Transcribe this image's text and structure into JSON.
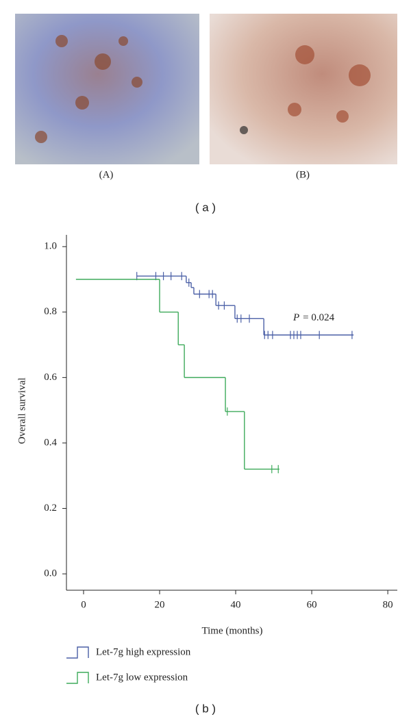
{
  "figure": {
    "panel_a": {
      "labels": [
        "(A)",
        "(B)"
      ],
      "caption": "( a )"
    },
    "caption": "( b )"
  },
  "chart_data": {
    "type": "step",
    "y_label": "Overall survival",
    "x_label": "Time (months)",
    "annotation": {
      "symbol": "P",
      "text": "= 0.024"
    },
    "xlim": [
      -4.5,
      82.5
    ],
    "ylim": [
      -0.05,
      1.036
    ],
    "xticks": [
      0,
      20,
      40,
      60,
      80
    ],
    "yticks": [
      {
        "value": 0,
        "label": "0.0"
      },
      {
        "value": 0.2,
        "label": "0.2"
      },
      {
        "value": 0.4,
        "label": "0.4"
      },
      {
        "value": 0.6,
        "label": "0.6"
      },
      {
        "value": 0.8,
        "label": "0.8"
      },
      {
        "value": 1,
        "label": "1.0"
      }
    ],
    "series": [
      {
        "name": "Let-7g high expression",
        "color": "#4a5fa6",
        "x": [
          14,
          27,
          28.3,
          29,
          34.8,
          39.8,
          47.4,
          71
        ],
        "values": [
          0.91,
          0.89,
          0.875,
          0.855,
          0.82,
          0.78,
          0.73,
          0.73
        ],
        "censor_x": [
          14,
          19,
          21,
          23,
          25.8,
          27.7,
          30.5,
          33,
          33.9,
          35.5,
          37,
          40.4,
          41.4,
          43.6,
          47.6,
          48.5,
          49.7,
          54.4,
          55.3,
          56.2,
          57.1,
          62,
          70.6
        ],
        "censor_values": [
          0.91,
          0.91,
          0.91,
          0.91,
          0.91,
          0.89,
          0.855,
          0.855,
          0.855,
          0.82,
          0.82,
          0.78,
          0.78,
          0.78,
          0.73,
          0.73,
          0.73,
          0.73,
          0.73,
          0.73,
          0.73,
          0.73,
          0.73
        ]
      },
      {
        "name": "Let-7g low expression",
        "color": "#3daa5a",
        "x": [
          -2,
          20,
          24.9,
          26.5,
          37.3,
          42.3,
          51.5
        ],
        "values": [
          0.9,
          0.8,
          0.7,
          0.6,
          0.496,
          0.32,
          0.32
        ],
        "censor_x": [
          37.8,
          49.5,
          51.2
        ],
        "censor_values": [
          0.496,
          0.32,
          0.32
        ]
      }
    ]
  }
}
